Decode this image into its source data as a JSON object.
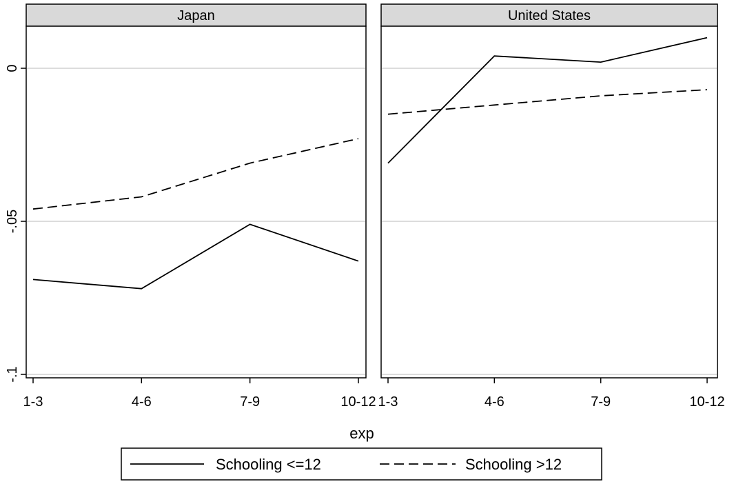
{
  "chart_data": {
    "type": "line",
    "categories": [
      "1-3",
      "4-6",
      "7-9",
      "10-12"
    ],
    "xlabel": "exp",
    "ylabel": "",
    "ylim": [
      -0.1,
      0.0
    ],
    "y_ticks": [
      {
        "value": 0,
        "label": "0"
      },
      {
        "value": -0.05,
        "label": "-.05"
      },
      {
        "value": -0.1,
        "label": "-.1"
      }
    ],
    "grid": true,
    "legend_position": "bottom",
    "panels": [
      {
        "title": "Japan",
        "series": [
          {
            "name": "Schooling <=12",
            "style": "solid",
            "values": [
              -0.069,
              -0.072,
              -0.051,
              -0.063
            ]
          },
          {
            "name": "Schooling >12",
            "style": "dashed",
            "values": [
              -0.046,
              -0.042,
              -0.031,
              -0.023
            ]
          }
        ]
      },
      {
        "title": "United States",
        "series": [
          {
            "name": "Schooling <=12",
            "style": "solid",
            "values": [
              -0.031,
              0.004,
              0.002,
              0.01
            ]
          },
          {
            "name": "Schooling >12",
            "style": "dashed",
            "values": [
              -0.015,
              -0.012,
              -0.009,
              -0.007
            ]
          }
        ]
      }
    ],
    "legend": [
      {
        "label": "Schooling <=12",
        "style": "solid"
      },
      {
        "label": "Schooling >12",
        "style": "dashed"
      }
    ],
    "colors": {
      "line": "#000000",
      "grid": "#dcdcdc",
      "strip": "#d9d9d9"
    }
  }
}
